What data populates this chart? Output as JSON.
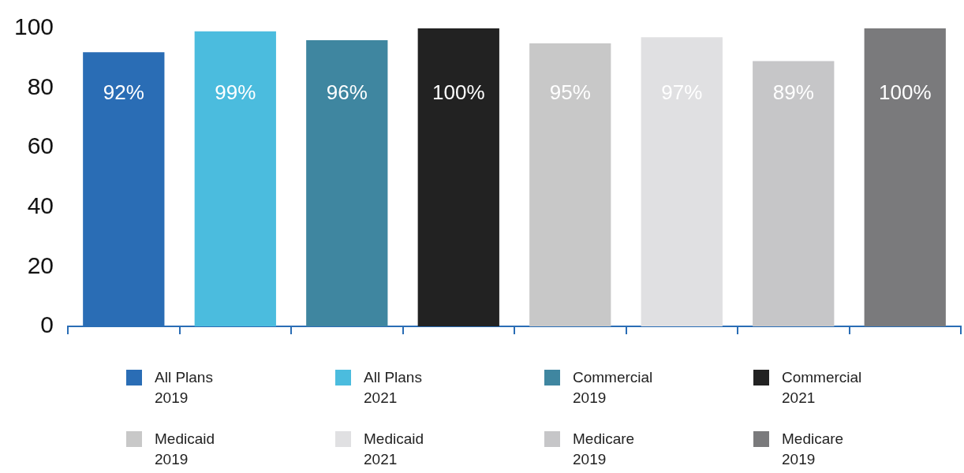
{
  "chart_data": {
    "type": "bar",
    "categories": [
      null,
      null,
      null,
      null,
      null,
      null,
      null,
      null
    ],
    "ylim": [
      0,
      100
    ],
    "yticks": [
      0,
      20,
      40,
      60,
      80,
      100
    ],
    "legend": "bottom",
    "series": [
      {
        "name": "All Plans 2019",
        "color": "#2a6db5",
        "values": [
          92,
          null,
          null,
          null,
          null,
          null,
          null,
          null
        ],
        "value_labels": [
          "92%",
          null,
          null,
          null,
          null,
          null,
          null,
          null
        ]
      },
      {
        "name": "All Plans 2021",
        "color": "#4bbcde",
        "values": [
          null,
          99,
          null,
          null,
          null,
          null,
          null,
          null
        ],
        "value_labels": [
          null,
          "99%",
          null,
          null,
          null,
          null,
          null,
          null
        ]
      },
      {
        "name": "Commercial 2019",
        "color": "#3f86a0",
        "values": [
          null,
          null,
          96,
          null,
          null,
          null,
          null,
          null
        ],
        "value_labels": [
          null,
          null,
          "96%",
          null,
          null,
          null,
          null,
          null
        ]
      },
      {
        "name": "Commercial 2021",
        "color": "#222222",
        "values": [
          null,
          null,
          null,
          100,
          null,
          null,
          null,
          null
        ],
        "value_labels": [
          null,
          null,
          null,
          "100%",
          null,
          null,
          null,
          null
        ]
      },
      {
        "name": "Medicaid 2019",
        "color": "#c8c8c8",
        "values": [
          null,
          null,
          null,
          null,
          95,
          null,
          null,
          null
        ],
        "value_labels": [
          null,
          null,
          null,
          null,
          "95%",
          null,
          null,
          null
        ]
      },
      {
        "name": "Medicaid 2021",
        "color": "#e0e0e2",
        "values": [
          null,
          null,
          null,
          null,
          null,
          97,
          null,
          null
        ],
        "value_labels": [
          null,
          null,
          null,
          null,
          null,
          "97%",
          null,
          null
        ]
      },
      {
        "name": "Medicare 2019",
        "color": "#c6c6c8",
        "values": [
          null,
          null,
          null,
          null,
          null,
          null,
          89,
          null
        ],
        "value_labels": [
          null,
          null,
          null,
          null,
          null,
          null,
          "89%",
          null
        ]
      },
      {
        "name": "Medicare 2019",
        "color": "#7a7a7c",
        "values": [
          null,
          null,
          null,
          null,
          null,
          null,
          null,
          100
        ],
        "value_labels": [
          null,
          null,
          null,
          null,
          null,
          null,
          null,
          "100%"
        ]
      }
    ]
  }
}
